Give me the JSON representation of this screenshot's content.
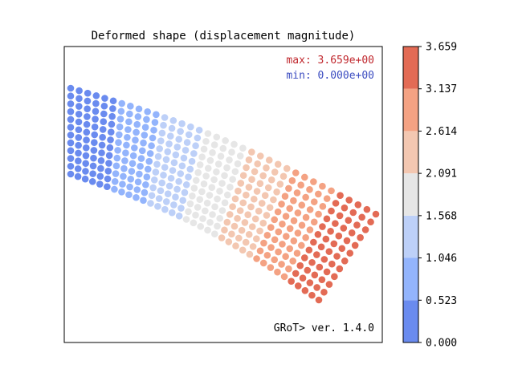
{
  "chart_data": {
    "type": "scatter",
    "title": "Deformed shape (displacement magnitude)",
    "xlabel": "",
    "ylabel": "",
    "grid": false,
    "annotations": {
      "max_text": "max: 3.659e+00",
      "min_text": "min: 0.000e+00",
      "footer": "GRoT> ver. 1.4.0"
    },
    "colorbar": {
      "range": [
        0.0,
        3.659
      ],
      "tick_labels": [
        "0.000",
        "0.523",
        "1.046",
        "1.568",
        "2.091",
        "2.614",
        "3.137",
        "3.659"
      ],
      "bins": [
        {
          "from": 0.0,
          "to": 0.523,
          "color": "#6A8BEF"
        },
        {
          "from": 0.523,
          "to": 1.046,
          "color": "#93B4FC"
        },
        {
          "from": 1.046,
          "to": 1.568,
          "color": "#BDD0F8"
        },
        {
          "from": 1.568,
          "to": 2.091,
          "color": "#E6E6E6"
        },
        {
          "from": 2.091,
          "to": 2.614,
          "color": "#F3C7B1"
        },
        {
          "from": 2.614,
          "to": 3.137,
          "color": "#F4A283"
        },
        {
          "from": 3.137,
          "to": 3.659,
          "color": "#E36B55"
        }
      ]
    },
    "mesh": {
      "columns": 36,
      "rows": 12,
      "corners": {
        "top_left": [
          0,
          0
        ],
        "top_right": [
          -3.4,
          1.45
        ],
        "bottom_left": [
          -0.1,
          -0.95
        ],
        "bottom_right": [
          -2.85,
          1.62
        ]
      },
      "bow": -0.55,
      "magnitude_range": [
        0.0,
        3.659
      ]
    }
  },
  "colors": {
    "frame": "#000000",
    "max_text": "#C0272D",
    "min_text": "#3B4CC0"
  }
}
